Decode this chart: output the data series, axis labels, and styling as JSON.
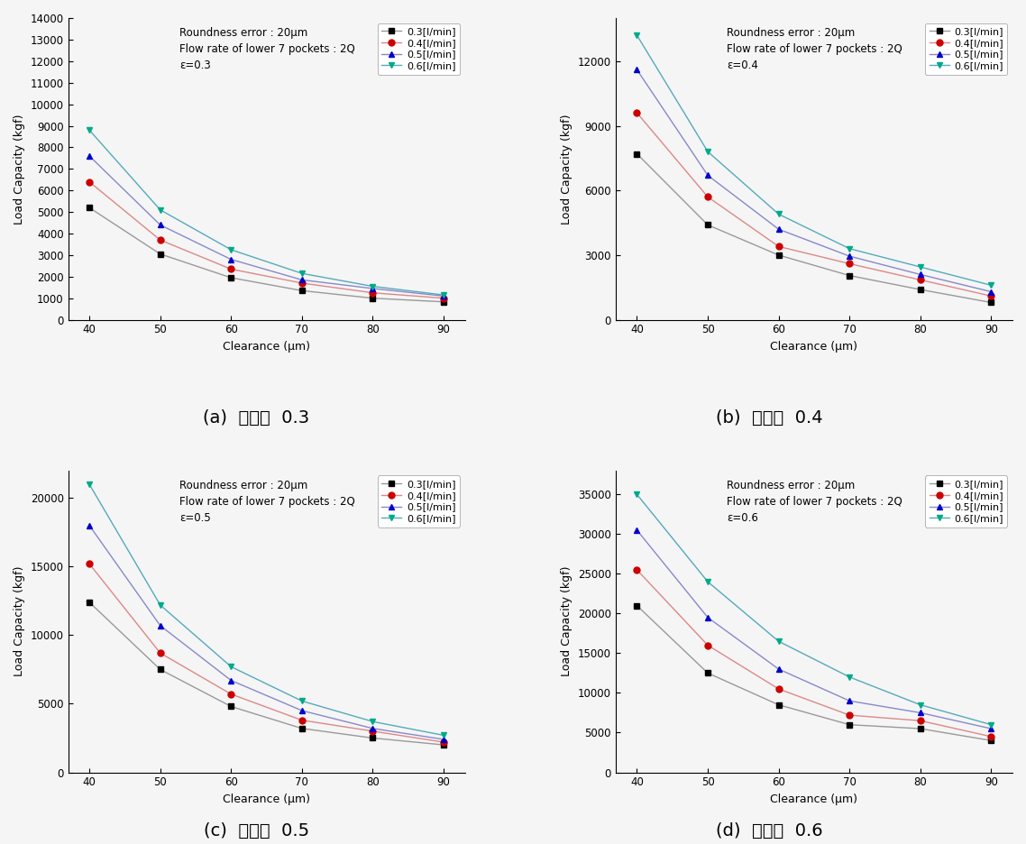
{
  "clearance": [
    40,
    50,
    60,
    70,
    80,
    90
  ],
  "subplot_a": {
    "title_text": "Roundness error : 20μm\nFlow rate of lower 7 pockets : 2Q\nε=0.3",
    "caption": "(a)  편심율  0.3",
    "ylim": [
      0,
      14000
    ],
    "yticks": [
      0,
      1000,
      2000,
      3000,
      4000,
      5000,
      6000,
      7000,
      8000,
      9000,
      10000,
      11000,
      12000,
      13000,
      14000
    ],
    "series": [
      {
        "label": "0.3[l/min]",
        "lcolor": "#999999",
        "marker": "s",
        "mcolor": "#000000",
        "values": [
          5200,
          3050,
          1950,
          1350,
          1000,
          830
        ]
      },
      {
        "label": "0.4[l/min]",
        "lcolor": "#dd8888",
        "marker": "o",
        "mcolor": "#cc0000",
        "values": [
          6400,
          3700,
          2350,
          1700,
          1250,
          1000
        ]
      },
      {
        "label": "0.5[l/min]",
        "lcolor": "#8888cc",
        "marker": "^",
        "mcolor": "#0000cc",
        "values": [
          7600,
          4400,
          2800,
          1850,
          1450,
          1100
        ]
      },
      {
        "label": "0.6[l/min]",
        "lcolor": "#55aabb",
        "marker": "v",
        "mcolor": "#00aa88",
        "values": [
          8800,
          5100,
          3250,
          2150,
          1550,
          1150
        ]
      }
    ]
  },
  "subplot_b": {
    "title_text": "Roundness error : 20μm\nFlow rate of lower 7 pockets : 2Q\nε=0.4",
    "caption": "(b)  편심율  0.4",
    "ylim": [
      0,
      14000
    ],
    "yticks": [
      0,
      3000,
      6000,
      9000,
      12000
    ],
    "series": [
      {
        "label": "0.3[l/min]",
        "lcolor": "#999999",
        "marker": "s",
        "mcolor": "#000000",
        "values": [
          7700,
          4400,
          3000,
          2050,
          1400,
          800
        ]
      },
      {
        "label": "0.4[l/min]",
        "lcolor": "#dd8888",
        "marker": "o",
        "mcolor": "#cc0000",
        "values": [
          9600,
          5700,
          3400,
          2600,
          1850,
          1100
        ]
      },
      {
        "label": "0.5[l/min]",
        "lcolor": "#8888cc",
        "marker": "^",
        "mcolor": "#0000cc",
        "values": [
          11600,
          6700,
          4200,
          2950,
          2100,
          1300
        ]
      },
      {
        "label": "0.6[l/min]",
        "lcolor": "#55aabb",
        "marker": "v",
        "mcolor": "#00aa88",
        "values": [
          13200,
          7800,
          4900,
          3300,
          2450,
          1600
        ]
      }
    ]
  },
  "subplot_c": {
    "title_text": "Roundness error : 20μm\nFlow rate of lower 7 pockets : 2Q\nε=0.5",
    "caption": "(c)  편심율  0.5",
    "ylim": [
      0,
      22000
    ],
    "yticks": [
      0,
      5000,
      10000,
      15000,
      20000
    ],
    "series": [
      {
        "label": "0.3[l/min]",
        "lcolor": "#999999",
        "marker": "s",
        "mcolor": "#000000",
        "values": [
          12400,
          7500,
          4800,
          3200,
          2500,
          2000
        ]
      },
      {
        "label": "0.4[l/min]",
        "lcolor": "#dd8888",
        "marker": "o",
        "mcolor": "#cc0000",
        "values": [
          15200,
          8700,
          5700,
          3800,
          3000,
          2200
        ]
      },
      {
        "label": "0.5[l/min]",
        "lcolor": "#8888cc",
        "marker": "^",
        "mcolor": "#0000cc",
        "values": [
          18000,
          10700,
          6700,
          4500,
          3200,
          2400
        ]
      },
      {
        "label": "0.6[l/min]",
        "lcolor": "#55aabb",
        "marker": "v",
        "mcolor": "#00aa88",
        "values": [
          21000,
          12200,
          7700,
          5200,
          3700,
          2700
        ]
      }
    ]
  },
  "subplot_d": {
    "title_text": "Roundness error : 20μm\nFlow rate of lower 7 pockets : 2Q\nε=0.6",
    "caption": "(d)  편심율  0.6",
    "ylim": [
      0,
      38000
    ],
    "yticks": [
      0,
      5000,
      10000,
      15000,
      20000,
      25000,
      30000,
      35000
    ],
    "series": [
      {
        "label": "0.3[l/min]",
        "lcolor": "#999999",
        "marker": "s",
        "mcolor": "#000000",
        "values": [
          21000,
          12500,
          8500,
          6000,
          5500,
          4000
        ]
      },
      {
        "label": "0.4[l/min]",
        "lcolor": "#dd8888",
        "marker": "o",
        "mcolor": "#cc0000",
        "values": [
          25500,
          16000,
          10500,
          7200,
          6500,
          4500
        ]
      },
      {
        "label": "0.5[l/min]",
        "lcolor": "#8888cc",
        "marker": "^",
        "mcolor": "#0000cc",
        "values": [
          30500,
          19500,
          13000,
          9000,
          7500,
          5500
        ]
      },
      {
        "label": "0.6[l/min]",
        "lcolor": "#55aabb",
        "marker": "v",
        "mcolor": "#00aa88",
        "values": [
          35000,
          24000,
          16500,
          12000,
          8500,
          6000
        ]
      }
    ]
  },
  "xlabel": "Clearance (μm)",
  "ylabel": "Load Capacity (kgf)",
  "xticks": [
    40,
    50,
    60,
    70,
    80,
    90
  ],
  "background_color": "#f5f5f5"
}
